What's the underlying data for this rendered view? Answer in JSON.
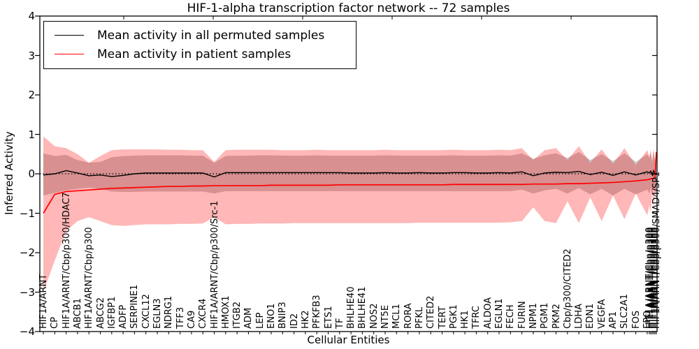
{
  "window": {
    "background": "#ffffff"
  },
  "chart_data": {
    "type": "line",
    "title": "HIF-1-alpha transcription factor network -- 72 samples",
    "xlabel": "Cellular Entities",
    "ylabel": "Inferred Activity",
    "ylim": [
      -4,
      4
    ],
    "grid": false,
    "zero_reference_line": {
      "style": "dotted",
      "color": "#000000",
      "y": 0
    },
    "legend_position": "upper left",
    "y_tick_values": [
      4,
      3,
      2,
      1,
      0,
      -1,
      -2,
      -3,
      -4
    ],
    "y_tick_labels": [
      "4",
      "3",
      "2",
      "1",
      "0",
      "−1",
      "−2",
      "−3",
      "−4"
    ],
    "categories": [
      "HIF1A/ARNT",
      "CP",
      "HIF1A/ARNT/Cbp/p300/HDAC7",
      "ABCB1",
      "HIF1A/ARNT/Cbp/p300",
      "ABCG2",
      "IGFBP1",
      "ADFP",
      "SERPINE1",
      "CXCL12",
      "EGLN3",
      "NDRG1",
      "TFF3",
      "CA9",
      "CXCR4",
      "HIF1A/ARNT/Cbp/p300/Src-1",
      "HMOX1",
      "ITGB2",
      "ADM",
      "LEP",
      "ENO1",
      "BNIP3",
      "ID2",
      "HK2",
      "PFKFB3",
      "ETS1",
      "TF",
      "BHLHE40",
      "BHLHE41",
      "NOS2",
      "NT5E",
      "MCL1",
      "RORA",
      "PFKL",
      "CITED2",
      "TERT",
      "PGK1",
      "HK1",
      "TFRC",
      "ALDOA",
      "EGLN1",
      "FECH",
      "FURIN",
      "NPM1",
      "PGM1",
      "PKM2",
      "Cbp/p300/CITED2",
      "LDHA",
      "EDN1",
      "VEGFA",
      "AP1",
      "SLC2A1",
      "FOS",
      "EPO"
    ],
    "overlap_cluster_labels": [
      "HIF1A/ARNT/Cbp/p300",
      "HIF1A/ARNT/Cbp/p300",
      "HIF1A/ARNT/Cbp/p300",
      "HIF1A/ARNT/Cbp/p300",
      "HIF1A/ARNT/Cbp/p300",
      "HIF1A/ARNT/Cbp/p300/SMAD4/SP1"
    ],
    "series": [
      {
        "name": "Mean activity in all permuted samples",
        "color": "#000000",
        "band_color": "rgba(110,110,110,0.40)",
        "values": [
          -0.03,
          0.0,
          0.08,
          0.02,
          -0.05,
          -0.03,
          -0.07,
          -0.04,
          0.0,
          0.02,
          0.02,
          0.02,
          0.02,
          0.02,
          0.02,
          -0.08,
          0.03,
          0.03,
          0.03,
          0.03,
          0.03,
          0.03,
          0.03,
          0.03,
          0.03,
          0.03,
          0.03,
          0.02,
          0.02,
          0.02,
          0.03,
          0.02,
          0.02,
          0.03,
          0.02,
          0.02,
          0.03,
          0.03,
          0.02,
          0.02,
          0.03,
          0.02,
          0.05,
          -0.05,
          0.02,
          0.04,
          0.03,
          0.06,
          -0.02,
          0.04,
          -0.04,
          0.05,
          -0.03,
          0.05,
          0.02,
          0.07,
          -0.02,
          0.08,
          0.0,
          0.02
        ],
        "band_upper": [
          0.52,
          0.45,
          0.48,
          0.35,
          0.28,
          0.3,
          0.42,
          0.45,
          0.46,
          0.47,
          0.47,
          0.47,
          0.47,
          0.46,
          0.46,
          0.28,
          0.45,
          0.46,
          0.46,
          0.47,
          0.47,
          0.46,
          0.46,
          0.46,
          0.47,
          0.46,
          0.46,
          0.46,
          0.46,
          0.46,
          0.47,
          0.46,
          0.46,
          0.46,
          0.46,
          0.46,
          0.47,
          0.46,
          0.46,
          0.46,
          0.47,
          0.46,
          0.52,
          0.38,
          0.47,
          0.52,
          0.4,
          0.55,
          0.35,
          0.5,
          0.32,
          0.52,
          0.3,
          0.5,
          0.4,
          0.55,
          0.35,
          0.6,
          0.35,
          0.6
        ],
        "band_lower": [
          -0.55,
          -0.48,
          -0.42,
          -0.38,
          -0.35,
          -0.38,
          -0.45,
          -0.46,
          -0.46,
          -0.45,
          -0.45,
          -0.45,
          -0.45,
          -0.45,
          -0.45,
          -0.5,
          -0.44,
          -0.44,
          -0.44,
          -0.44,
          -0.44,
          -0.44,
          -0.44,
          -0.44,
          -0.44,
          -0.44,
          -0.44,
          -0.44,
          -0.44,
          -0.44,
          -0.44,
          -0.44,
          -0.44,
          -0.44,
          -0.44,
          -0.44,
          -0.44,
          -0.44,
          -0.44,
          -0.44,
          -0.44,
          -0.44,
          -0.4,
          -0.5,
          -0.42,
          -0.38,
          -0.5,
          -0.36,
          -0.52,
          -0.38,
          -0.55,
          -0.38,
          -0.52,
          -0.4,
          -0.5,
          -0.35,
          -0.55,
          -0.35,
          -0.5,
          -0.45
        ]
      },
      {
        "name": "Mean activity in patient samples",
        "color": "#ff0000",
        "band_color": "rgba(255,35,35,0.33)",
        "values": [
          -1.0,
          -0.52,
          -0.45,
          -0.43,
          -0.41,
          -0.39,
          -0.37,
          -0.36,
          -0.35,
          -0.34,
          -0.33,
          -0.32,
          -0.32,
          -0.31,
          -0.31,
          -0.3,
          -0.3,
          -0.3,
          -0.3,
          -0.3,
          -0.29,
          -0.29,
          -0.29,
          -0.29,
          -0.29,
          -0.29,
          -0.28,
          -0.28,
          -0.28,
          -0.28,
          -0.28,
          -0.28,
          -0.28,
          -0.28,
          -0.28,
          -0.28,
          -0.27,
          -0.27,
          -0.27,
          -0.27,
          -0.27,
          -0.27,
          -0.27,
          -0.26,
          -0.26,
          -0.26,
          -0.25,
          -0.25,
          -0.24,
          -0.23,
          -0.22,
          -0.2,
          -0.18,
          -0.15,
          -0.14,
          -0.13,
          -0.12,
          -0.12,
          -0.11,
          0.55
        ],
        "band_upper": [
          0.95,
          0.7,
          0.65,
          0.5,
          0.28,
          0.45,
          0.6,
          0.62,
          0.62,
          0.62,
          0.62,
          0.61,
          0.61,
          0.6,
          0.6,
          0.3,
          0.6,
          0.61,
          0.61,
          0.61,
          0.61,
          0.6,
          0.6,
          0.6,
          0.61,
          0.6,
          0.6,
          0.6,
          0.6,
          0.6,
          0.61,
          0.6,
          0.6,
          0.6,
          0.6,
          0.6,
          0.61,
          0.6,
          0.6,
          0.6,
          0.61,
          0.6,
          0.65,
          0.35,
          0.6,
          0.65,
          0.35,
          0.7,
          0.28,
          0.62,
          0.25,
          0.65,
          0.22,
          0.6,
          0.45,
          0.62,
          0.25,
          0.65,
          0.3,
          0.62
        ],
        "band_lower": [
          -3.0,
          -2.2,
          -1.45,
          -1.2,
          -1.1,
          -1.2,
          -1.3,
          -1.32,
          -1.3,
          -1.28,
          -1.28,
          -1.28,
          -1.27,
          -1.27,
          -1.26,
          -1.1,
          -1.28,
          -1.27,
          -1.27,
          -1.26,
          -1.26,
          -1.26,
          -1.25,
          -1.25,
          -1.25,
          -1.25,
          -1.25,
          -1.25,
          -1.25,
          -1.25,
          -1.25,
          -1.25,
          -1.25,
          -1.24,
          -1.24,
          -1.24,
          -1.24,
          -1.24,
          -1.24,
          -1.24,
          -1.24,
          -1.23,
          -1.2,
          -0.85,
          -1.2,
          -1.25,
          -0.7,
          -1.25,
          -0.6,
          -1.2,
          -0.55,
          -1.15,
          -0.5,
          -1.05,
          -0.8,
          -1.0,
          -0.45,
          -0.9,
          -0.4,
          -0.6
        ]
      }
    ]
  }
}
